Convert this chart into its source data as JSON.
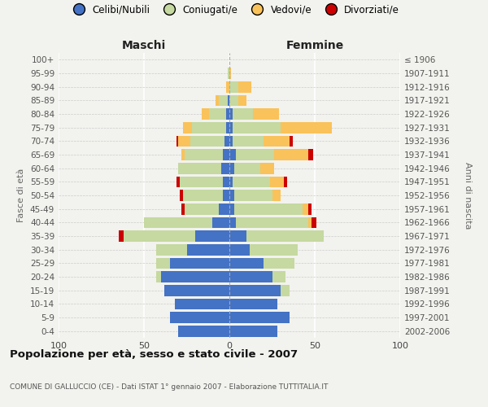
{
  "age_groups": [
    "100+",
    "95-99",
    "90-94",
    "85-89",
    "80-84",
    "75-79",
    "70-74",
    "65-69",
    "60-64",
    "55-59",
    "50-54",
    "45-49",
    "40-44",
    "35-39",
    "30-34",
    "25-29",
    "20-24",
    "15-19",
    "10-14",
    "5-9",
    "0-4"
  ],
  "birth_years": [
    "≤ 1906",
    "1907-1911",
    "1912-1916",
    "1917-1921",
    "1922-1926",
    "1927-1931",
    "1932-1936",
    "1937-1941",
    "1942-1946",
    "1947-1951",
    "1952-1956",
    "1957-1961",
    "1962-1966",
    "1967-1971",
    "1972-1976",
    "1977-1981",
    "1982-1986",
    "1987-1991",
    "1992-1996",
    "1997-2001",
    "2002-2006"
  ],
  "maschi_celibe": [
    0,
    0,
    0,
    1,
    2,
    2,
    3,
    4,
    5,
    4,
    4,
    6,
    10,
    20,
    25,
    35,
    40,
    38,
    32,
    35,
    30
  ],
  "maschi_coniugato": [
    0,
    1,
    0,
    5,
    10,
    20,
    20,
    22,
    25,
    25,
    23,
    20,
    40,
    42,
    18,
    8,
    3,
    0,
    0,
    0,
    0
  ],
  "maschi_vedovo": [
    0,
    0,
    2,
    2,
    4,
    5,
    7,
    2,
    0,
    0,
    0,
    0,
    0,
    0,
    0,
    0,
    0,
    0,
    0,
    0,
    0
  ],
  "maschi_divorziato": [
    0,
    0,
    0,
    0,
    0,
    0,
    1,
    0,
    0,
    2,
    2,
    2,
    0,
    3,
    0,
    0,
    0,
    0,
    0,
    0,
    0
  ],
  "femmine_nubile": [
    0,
    0,
    0,
    0,
    2,
    2,
    2,
    4,
    3,
    2,
    3,
    3,
    4,
    10,
    12,
    20,
    25,
    30,
    28,
    35,
    28
  ],
  "femmine_coniugata": [
    0,
    0,
    5,
    5,
    12,
    28,
    18,
    22,
    15,
    22,
    22,
    40,
    42,
    45,
    28,
    18,
    8,
    5,
    0,
    0,
    0
  ],
  "femmine_vedova": [
    0,
    1,
    8,
    5,
    15,
    30,
    15,
    20,
    8,
    8,
    5,
    3,
    2,
    0,
    0,
    0,
    0,
    0,
    0,
    0,
    0
  ],
  "femmine_divorziata": [
    0,
    0,
    0,
    0,
    0,
    0,
    2,
    3,
    0,
    2,
    0,
    2,
    3,
    0,
    0,
    0,
    0,
    0,
    0,
    0,
    0
  ],
  "colors_celibe": "#4472C4",
  "colors_coniugato": "#C5D9A0",
  "colors_vedovo": "#FAC25A",
  "colors_divorziato": "#CC0000",
  "legend_labels": [
    "Celibi/Nubili",
    "Coniugati/e",
    "Vedovi/e",
    "Divorziati/e"
  ],
  "xlim": 100,
  "title": "Popolazione per età, sesso e stato civile - 2007",
  "subtitle": "COMUNE DI GALLUCCIO (CE) - Dati ISTAT 1° gennaio 2007 - Elaborazione TUTTITALIA.IT",
  "ylabel_left": "Fasce di età",
  "ylabel_right": "Anni di nascita",
  "label_maschi": "Maschi",
  "label_femmine": "Femmine",
  "bg_color": "#f2f2ee"
}
